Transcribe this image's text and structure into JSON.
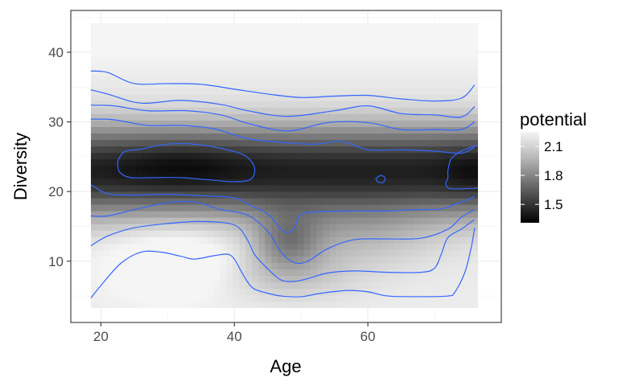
{
  "chart_data": {
    "type": "heatmap",
    "title": "",
    "xlabel": "Age",
    "ylabel": "Diversity",
    "xlim": [
      15.5,
      80
    ],
    "ylim": [
      1.2,
      46
    ],
    "raster_x_range": [
      18.5,
      76.5
    ],
    "raster_y_range": [
      3.3,
      44.2
    ],
    "x_ticks": [
      20,
      40,
      60
    ],
    "y_ticks": [
      10,
      20,
      30,
      40
    ],
    "grid": true,
    "legend": {
      "title": "potential",
      "position": "right",
      "range": [
        1.31,
        2.25
      ],
      "breaks": [
        1.5,
        1.8,
        2.1
      ],
      "low_color": "#000000",
      "high_color": "#f5f5f5"
    },
    "fill_variable": "potential",
    "contour_color": "#3366FF",
    "contours": [
      {
        "points": [
          [
            18.5,
            37.3
          ],
          [
            21,
            37.1
          ],
          [
            25,
            35.5
          ],
          [
            30,
            35.5
          ],
          [
            35,
            35.4
          ],
          [
            40,
            34.7
          ],
          [
            45,
            34.0
          ],
          [
            50,
            33.5
          ],
          [
            55,
            33.7
          ],
          [
            60,
            33.8
          ],
          [
            65,
            33.3
          ],
          [
            70,
            33.0
          ],
          [
            74,
            33.4
          ],
          [
            76,
            35.3
          ]
        ]
      },
      {
        "points": [
          [
            18.5,
            34.6
          ],
          [
            21,
            34.0
          ],
          [
            26,
            32.7
          ],
          [
            32,
            33.1
          ],
          [
            38,
            32.5
          ],
          [
            42,
            31.6
          ],
          [
            48,
            30.8
          ],
          [
            55,
            31.6
          ],
          [
            60,
            32.3
          ],
          [
            65,
            31.2
          ],
          [
            70,
            31.0
          ],
          [
            74,
            30.7
          ],
          [
            76,
            32.2
          ]
        ]
      },
      {
        "points": [
          [
            18.5,
            32.4
          ],
          [
            22,
            32.3
          ],
          [
            27,
            31.6
          ],
          [
            33,
            31.6
          ],
          [
            38,
            31.0
          ],
          [
            42,
            29.8
          ],
          [
            48,
            28.7
          ],
          [
            54,
            29.9
          ],
          [
            60,
            29.9
          ],
          [
            65,
            28.9
          ],
          [
            70,
            28.9
          ],
          [
            74,
            28.9
          ],
          [
            76,
            30.0
          ]
        ]
      },
      {
        "points": [
          [
            18.5,
            30.4
          ],
          [
            22,
            30.3
          ],
          [
            27,
            29.5
          ],
          [
            32,
            29.5
          ],
          [
            37,
            29.0
          ],
          [
            42,
            27.6
          ],
          [
            48,
            27.0
          ],
          [
            52,
            26.8
          ],
          [
            56,
            27.2
          ],
          [
            60,
            26.0
          ],
          [
            65,
            26.0
          ],
          [
            70,
            25.8
          ],
          [
            74,
            25.5
          ],
          [
            76,
            26.4
          ]
        ]
      },
      {
        "points": [
          [
            22.5,
            24.3
          ],
          [
            23.5,
            25.7
          ],
          [
            26,
            26.1
          ],
          [
            30,
            26.8
          ],
          [
            34,
            26.8
          ],
          [
            38,
            26.2
          ],
          [
            41.5,
            25.2
          ],
          [
            43,
            23.5
          ],
          [
            42.5,
            21.8
          ],
          [
            40,
            21.4
          ],
          [
            36,
            21.7
          ],
          [
            32,
            22.0
          ],
          [
            28,
            22.0
          ],
          [
            24.5,
            22.0
          ],
          [
            22.8,
            22.8
          ],
          [
            22.5,
            24.3
          ]
        ],
        "closed": true
      },
      {
        "points": [
          [
            61.2,
            21.9
          ],
          [
            62,
            22.3
          ],
          [
            62.6,
            21.9
          ],
          [
            62.3,
            21.3
          ],
          [
            61.5,
            21.4
          ],
          [
            61.2,
            21.9
          ]
        ],
        "closed": true
      },
      {
        "points": [
          [
            76.5,
            26.7
          ],
          [
            74,
            25.8
          ],
          [
            72.5,
            24.7
          ],
          [
            72,
            23.0
          ],
          [
            72,
            22.0
          ],
          [
            71.7,
            21.1
          ],
          [
            72.5,
            20.4
          ],
          [
            76.5,
            20.5
          ]
        ]
      },
      {
        "points": [
          [
            18.5,
            21.0
          ],
          [
            21,
            19.7
          ],
          [
            25,
            19.5
          ],
          [
            30,
            19.6
          ],
          [
            35,
            19.4
          ],
          [
            40,
            19.1
          ],
          [
            42,
            18.2
          ],
          [
            45,
            16.8
          ],
          [
            47,
            14.6
          ],
          [
            48,
            14.1
          ],
          [
            49,
            14.8
          ],
          [
            50,
            16.7
          ],
          [
            53,
            17.1
          ],
          [
            58,
            17.2
          ],
          [
            63,
            17.2
          ],
          [
            67,
            17.4
          ],
          [
            71,
            17.5
          ],
          [
            74,
            18.5
          ],
          [
            76,
            19.3
          ]
        ]
      },
      {
        "points": [
          [
            18.5,
            16.5
          ],
          [
            21,
            16.5
          ],
          [
            25,
            17.4
          ],
          [
            30,
            18.4
          ],
          [
            34,
            18.5
          ],
          [
            38,
            17.4
          ],
          [
            42,
            16.6
          ],
          [
            45,
            14.3
          ],
          [
            47,
            11.3
          ],
          [
            49,
            9.8
          ],
          [
            51,
            10.0
          ],
          [
            54,
            11.8
          ],
          [
            58,
            13.1
          ],
          [
            63,
            13.2
          ],
          [
            68,
            13.3
          ],
          [
            72,
            14.6
          ],
          [
            74,
            16.3
          ],
          [
            76,
            17.4
          ]
        ]
      },
      {
        "points": [
          [
            18.5,
            12.2
          ],
          [
            21,
            13.6
          ],
          [
            25,
            14.8
          ],
          [
            30,
            15.4
          ],
          [
            35,
            15.7
          ],
          [
            40,
            15.2
          ],
          [
            42,
            13.0
          ],
          [
            43,
            11.0
          ],
          [
            45,
            8.9
          ],
          [
            47,
            7.3
          ],
          [
            49,
            7.1
          ],
          [
            51,
            7.5
          ],
          [
            54,
            8.3
          ],
          [
            58,
            8.6
          ],
          [
            63,
            8.4
          ],
          [
            68,
            8.4
          ],
          [
            70,
            9.0
          ],
          [
            71,
            11.0
          ],
          [
            72,
            13.4
          ],
          [
            74,
            14.6
          ],
          [
            76,
            16.0
          ]
        ]
      },
      {
        "points": [
          [
            18.5,
            4.7
          ],
          [
            20,
            6.5
          ],
          [
            23,
            9.7
          ],
          [
            26,
            11.3
          ],
          [
            29,
            11.3
          ],
          [
            32,
            10.7
          ],
          [
            34,
            10.3
          ],
          [
            37,
            10.8
          ],
          [
            39,
            11.0
          ],
          [
            40,
            10.3
          ],
          [
            41,
            8.6
          ],
          [
            42,
            7.0
          ],
          [
            43,
            6.0
          ],
          [
            45,
            5.4
          ],
          [
            47,
            5.0
          ],
          [
            50,
            4.9
          ],
          [
            53,
            5.4
          ],
          [
            57,
            5.8
          ],
          [
            60,
            5.6
          ],
          [
            63,
            5.0
          ],
          [
            68,
            4.9
          ],
          [
            72,
            5.0
          ],
          [
            73,
            5.5
          ],
          [
            74.5,
            8.3
          ],
          [
            75.5,
            12.0
          ],
          [
            76,
            14.8
          ]
        ]
      }
    ]
  }
}
